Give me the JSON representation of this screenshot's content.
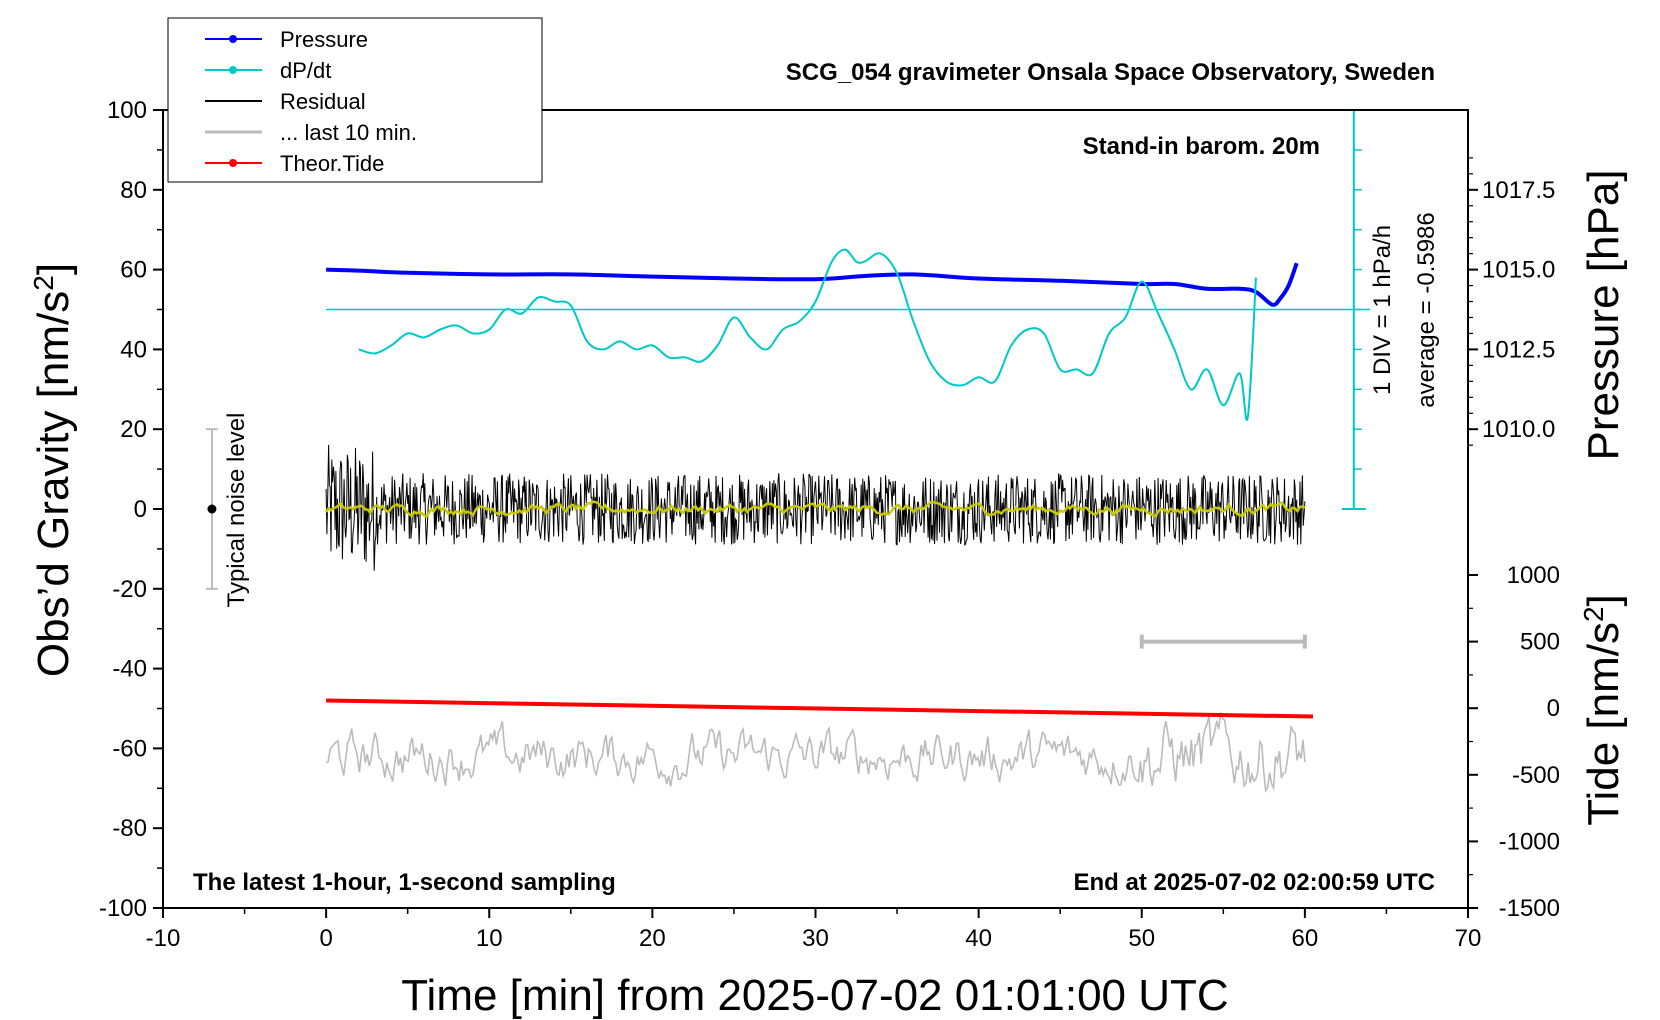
{
  "chart_data": {
    "type": "line",
    "title": "SCG_054 gravimeter Onsala Space Observatory, Sweden",
    "xlabel": "Time [min] from 2025-07-02 01:01:00 UTC",
    "xlim": [
      -10,
      70
    ],
    "x_ticks": [
      "-10",
      "0",
      "10",
      "20",
      "30",
      "40",
      "50",
      "60",
      "70"
    ],
    "left_axis": {
      "label_main": "Obs’d Gravity [nm/s",
      "label_sup": "2",
      "label_end": "]",
      "ylim": [
        -100,
        100
      ],
      "ticks": [
        "100",
        "80",
        "60",
        "40",
        "20",
        "0",
        "-20",
        "-40",
        "-60",
        "-80",
        "-100"
      ]
    },
    "pressure_axis": {
      "label": "Pressure [hPa]",
      "ticks": [
        "1017.5",
        "1015.0",
        "1012.5",
        "1010.0"
      ],
      "unit_per_gravity": 0.125
    },
    "tide_axis": {
      "label_main": "Tide [nm/s",
      "label_sup": "2",
      "label_end": "]",
      "ticks": [
        "1000",
        "500",
        "0",
        "-500",
        "-1000",
        "-1500"
      ]
    },
    "annotations": {
      "barom": "Stand-in barom. 20m",
      "bottom_left": "The latest 1-hour, 1-second sampling",
      "bottom_right": "End at 2025-07-02 02:00:59 UTC",
      "div_label": "1 DIV = 1 hPa/h",
      "average_label": "average = -0.5986",
      "noise_label": "Typical noise level"
    },
    "legend": [
      {
        "name": "Pressure",
        "color": "#0000ff",
        "marker": true
      },
      {
        "name": "dP/dt",
        "color": "#00c8c8",
        "marker": true
      },
      {
        "name": "Residual",
        "color": "#000000",
        "marker": false
      },
      {
        "name": "... last 10 min.",
        "color": "#bbbbbb",
        "marker": false
      },
      {
        "name": "Theor.Tide",
        "color": "#ff0000",
        "marker": true
      }
    ],
    "legend_position": "top-left",
    "noise_bar": {
      "x": -7,
      "y": 0,
      "half_range": 20
    },
    "ten_min_bar": {
      "x_start": 50,
      "x_end": 60,
      "tide_level": 500
    },
    "series": [
      {
        "name": "Pressure",
        "axis": "pressure",
        "color": "#0000ff",
        "x": [
          0,
          2,
          5,
          10,
          15,
          20,
          25,
          30,
          33,
          36,
          40,
          45,
          50,
          52,
          54,
          56,
          57,
          58,
          58.5,
          59,
          59.5
        ],
        "y": [
          1015.0,
          1014.97,
          1014.9,
          1014.85,
          1014.85,
          1014.78,
          1014.72,
          1014.7,
          1014.8,
          1014.85,
          1014.72,
          1014.65,
          1014.55,
          1014.55,
          1014.4,
          1014.4,
          1014.3,
          1013.9,
          1014.1,
          1014.5,
          1015.2
        ]
      },
      {
        "name": "dP/dt",
        "axis": "left",
        "color": "#00c8c8",
        "x": [
          2,
          3,
          4,
          5,
          6,
          7,
          8,
          9,
          10,
          11,
          12,
          13,
          14,
          15,
          16,
          17,
          18,
          19,
          20,
          21,
          22,
          23,
          24,
          25,
          26,
          27,
          28,
          29,
          30,
          31,
          31.8,
          32.5,
          33,
          34,
          35,
          36,
          37,
          38,
          39,
          40,
          41,
          42,
          43,
          44,
          45,
          46,
          47,
          48,
          49,
          50,
          51,
          52,
          53,
          54,
          55,
          56,
          56.5,
          57
        ],
        "y": [
          40,
          39,
          41,
          44,
          43,
          45,
          46,
          44,
          45,
          50,
          49,
          53,
          52,
          51,
          42,
          40,
          42,
          40,
          41,
          38,
          38,
          37,
          41,
          48,
          43,
          40,
          45,
          47,
          52,
          62,
          65,
          62,
          62,
          64,
          59,
          47,
          37,
          32,
          31,
          33,
          32,
          41,
          45,
          44,
          35,
          35,
          34,
          44,
          48,
          57,
          49,
          40,
          30,
          35,
          26,
          34,
          23,
          58
        ]
      },
      {
        "name": "Theor.Tide",
        "axis": "left",
        "color": "#ff0000",
        "x": [
          0,
          60.5
        ],
        "y": [
          -48,
          -52
        ]
      }
    ],
    "noise_envelopes": [
      {
        "name": "Residual",
        "color": "#000000",
        "center": 0,
        "amplitude": 9,
        "x_start": 0,
        "x_end": 60
      },
      {
        "name": "smoothed residual",
        "color": "#c8c800",
        "center": 0,
        "amplitude": 1.5,
        "x_start": 0,
        "x_end": 60
      },
      {
        "name": "... last 10 min.",
        "color": "#bbbbbb",
        "center": -62,
        "amplitude": 7,
        "x_start": 0,
        "x_end": 60
      }
    ]
  }
}
